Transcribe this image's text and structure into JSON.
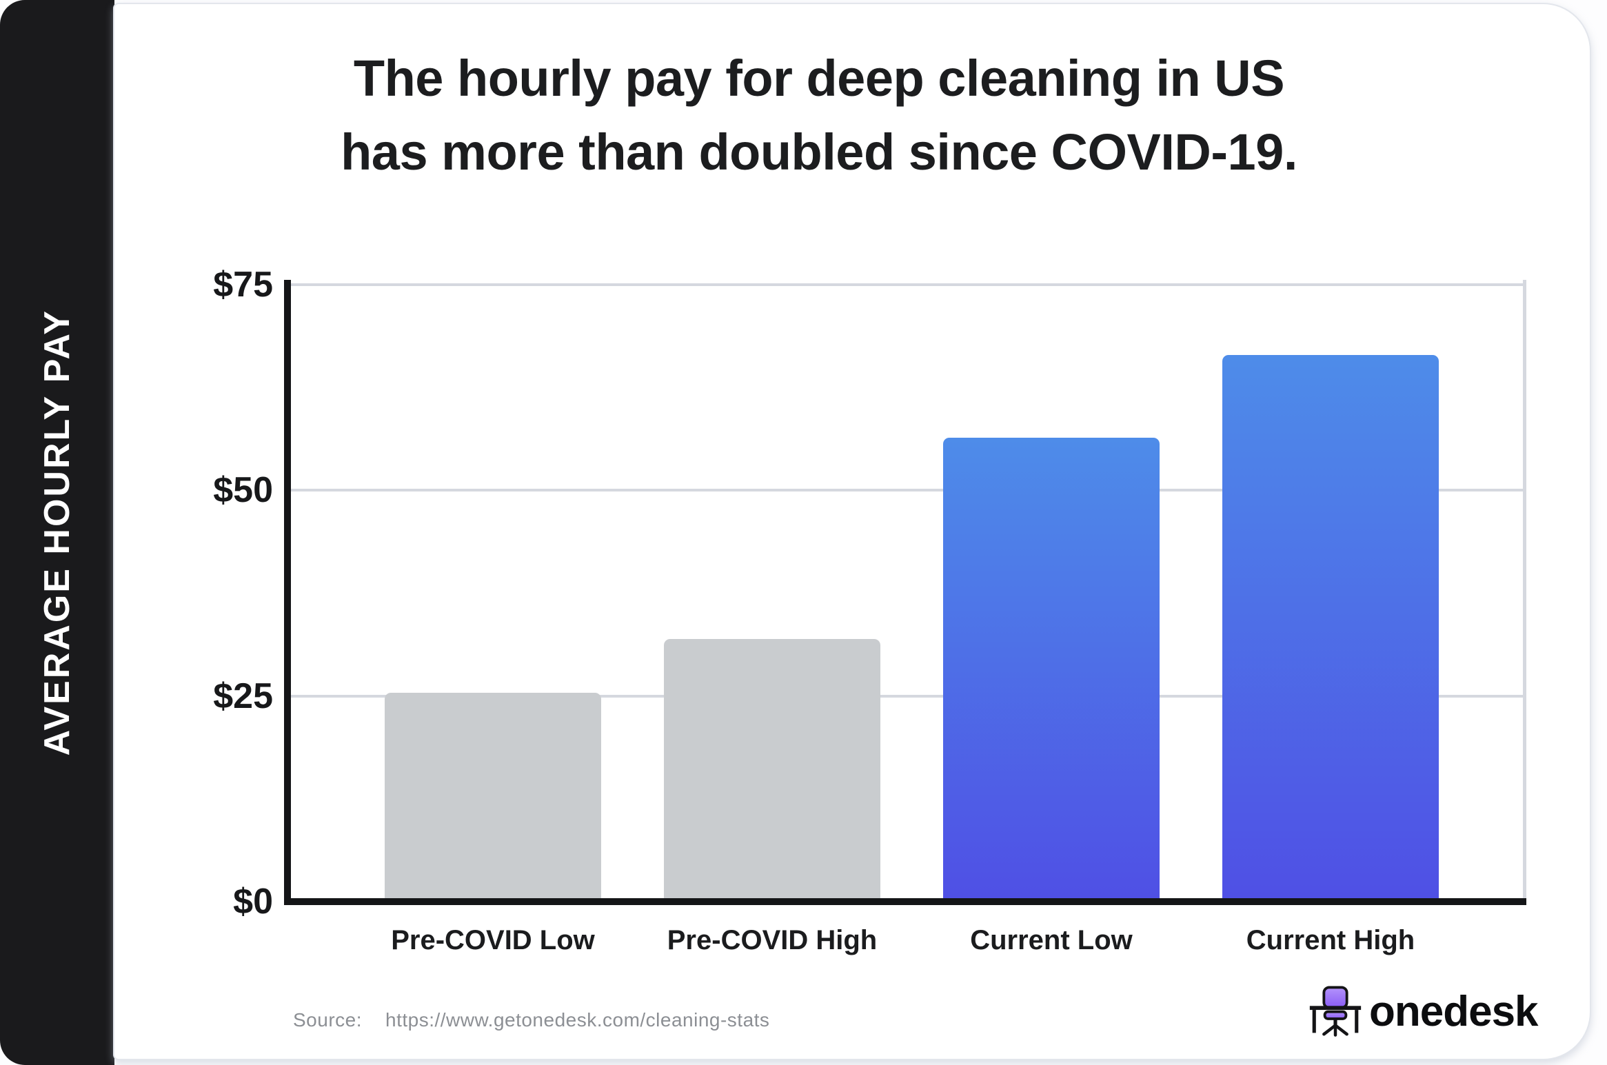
{
  "sidebar": {
    "label": "AVERAGE HOURLY PAY"
  },
  "header": {
    "line1": "The hourly pay for deep cleaning in US",
    "line2": "has more than doubled since COVID-19."
  },
  "chart_data": {
    "type": "bar",
    "title": "The hourly pay for deep cleaning in US has more than doubled since COVID-19.",
    "categories": [
      "Pre-COVID Low",
      "Pre-COVID High",
      "Current Low",
      "Current High"
    ],
    "values": [
      25,
      31.5,
      56,
      66
    ],
    "bar_styles": [
      "gray",
      "gray",
      "blue",
      "blue"
    ],
    "ylabel": "AVERAGE HOURLY PAY",
    "xlabel": "",
    "ylim": [
      0,
      75
    ],
    "grid": true,
    "yticks": [
      {
        "label": "$75",
        "value": 75
      },
      {
        "label": "$50",
        "value": 50
      },
      {
        "label": "$25",
        "value": 25
      },
      {
        "label": "$0",
        "value": 0
      }
    ],
    "colors": {
      "bar_gray": "#c9cccf",
      "bar_blue_top": "#4e8ce9",
      "bar_blue_bottom": "#4f50e5",
      "gridline": "#d5d8df",
      "axis": "#141517",
      "text_dark": "#1c1d1f",
      "panel_dark": "#1a1a1c"
    }
  },
  "source": {
    "label": "Source:",
    "url": "https://www.getonedesk.com/cleaning-stats"
  },
  "brand": {
    "name": "onedesk",
    "icon": "desk-chair-icon",
    "chair_purple_light": "#b493fb",
    "chair_purple_dark": "#8a5cf5"
  }
}
